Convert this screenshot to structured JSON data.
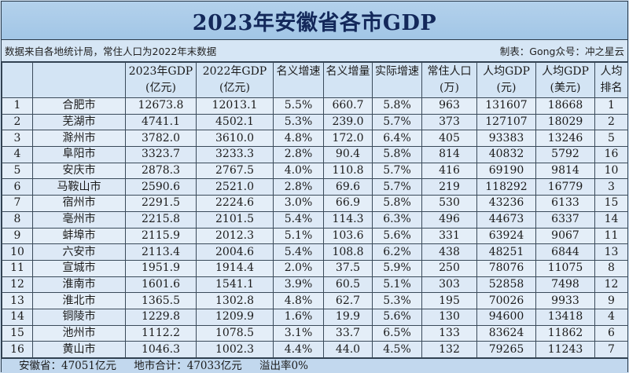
{
  "title": "2023年安徽省各市GDP",
  "subtitle_left": "数据来自各地统计局，常住人口为2022年末数据",
  "subtitle_right": "制表：Gong众号：冲之星云",
  "headers": [
    [
      "",
      ""
    ],
    [
      "",
      ""
    ],
    [
      "2023年GDP",
      "(亿元)"
    ],
    [
      "2022年GDP",
      "(亿元)"
    ],
    [
      "名义增速",
      ""
    ],
    [
      "名义增量",
      ""
    ],
    [
      "实际增速",
      ""
    ],
    [
      "常住人口",
      "(万)"
    ],
    [
      "人均GDP",
      "(元)"
    ],
    [
      "人均GDP",
      "(美元)"
    ],
    [
      "人均",
      "排名"
    ]
  ],
  "rows": [
    [
      "1",
      "合肥市",
      "12673.8",
      "12013.1",
      "5.5%",
      "660.7",
      "5.8%",
      "963",
      "131607",
      "18668",
      "1"
    ],
    [
      "2",
      "芜湖市",
      "4741.1",
      "4502.1",
      "5.3%",
      "239.0",
      "5.7%",
      "373",
      "127107",
      "18029",
      "2"
    ],
    [
      "3",
      "滁州市",
      "3782.0",
      "3610.0",
      "4.8%",
      "172.0",
      "6.4%",
      "405",
      "93383",
      "13246",
      "5"
    ],
    [
      "4",
      "阜阳市",
      "3323.7",
      "3233.3",
      "2.8%",
      "90.4",
      "5.8%",
      "814",
      "40832",
      "5792",
      "16"
    ],
    [
      "5",
      "安庆市",
      "2878.3",
      "2767.5",
      "4.0%",
      "110.8",
      "5.7%",
      "416",
      "69190",
      "9814",
      "10"
    ],
    [
      "6",
      "马鞍山市",
      "2590.6",
      "2521.0",
      "2.8%",
      "69.6",
      "5.7%",
      "219",
      "118292",
      "16779",
      "3"
    ],
    [
      "7",
      "宿州市",
      "2291.5",
      "2224.6",
      "3.0%",
      "66.9",
      "5.8%",
      "530",
      "43236",
      "6133",
      "15"
    ],
    [
      "8",
      "亳州市",
      "2215.8",
      "2101.5",
      "5.4%",
      "114.3",
      "6.3%",
      "496",
      "44673",
      "6337",
      "14"
    ],
    [
      "9",
      "蚌埠市",
      "2115.9",
      "2012.3",
      "5.1%",
      "103.6",
      "5.6%",
      "331",
      "63924",
      "9067",
      "11"
    ],
    [
      "10",
      "六安市",
      "2113.4",
      "2004.6",
      "5.4%",
      "108.8",
      "6.2%",
      "438",
      "48251",
      "6844",
      "13"
    ],
    [
      "11",
      "宣城市",
      "1951.9",
      "1914.4",
      "2.0%",
      "37.5",
      "5.9%",
      "250",
      "78076",
      "11075",
      "8"
    ],
    [
      "12",
      "淮南市",
      "1601.6",
      "1541.1",
      "3.9%",
      "60.5",
      "5.1%",
      "303",
      "52858",
      "7498",
      "12"
    ],
    [
      "13",
      "淮北市",
      "1365.5",
      "1302.8",
      "4.8%",
      "62.7",
      "5.3%",
      "195",
      "70026",
      "9933",
      "9"
    ],
    [
      "14",
      "铜陵市",
      "1229.8",
      "1209.9",
      "1.6%",
      "19.9",
      "5.6%",
      "130",
      "94600",
      "13418",
      "4"
    ],
    [
      "15",
      "池州市",
      "1112.2",
      "1078.5",
      "3.1%",
      "33.7",
      "6.5%",
      "133",
      "83624",
      "11862",
      "6"
    ],
    [
      "16",
      "黄山市",
      "1046.3",
      "1002.3",
      "4.4%",
      "44.0",
      "4.5%",
      "132",
      "79265",
      "11243",
      "7"
    ]
  ],
  "footer": {
    "province_total": "安徽省：47051亿元",
    "city_sum": "地市合计：47033亿元",
    "overflow_rate": "溢出率0%"
  }
}
